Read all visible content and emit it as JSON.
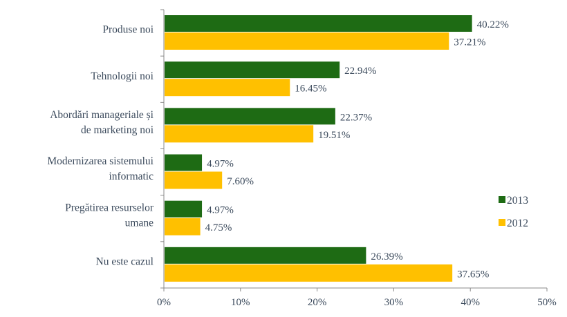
{
  "chart_data": {
    "type": "bar",
    "orientation": "horizontal",
    "title": "",
    "xlabel": "",
    "ylabel": "",
    "xlim": [
      0,
      50
    ],
    "x_ticks": [
      "0%",
      "10%",
      "20%",
      "30%",
      "40%",
      "50%"
    ],
    "categories": [
      [
        "Produse noi"
      ],
      [
        "Tehnologii noi"
      ],
      [
        "Abordări manageriale și",
        "de marketing noi"
      ],
      [
        "Modernizarea sistemului",
        "informatic"
      ],
      [
        "Pregătirea resurselor",
        "umane"
      ],
      [
        "Nu este cazul"
      ]
    ],
    "series": [
      {
        "name": "2013",
        "color": "#1e6b14",
        "values": [
          40.22,
          22.94,
          22.37,
          4.97,
          4.97,
          26.39
        ],
        "labels": [
          "40.22%",
          "22.94%",
          "22.37%",
          "4.97%",
          "4.97%",
          "26.39%"
        ]
      },
      {
        "name": "2012",
        "color": "#ffc000",
        "values": [
          37.21,
          16.45,
          19.51,
          7.6,
          4.75,
          37.65
        ],
        "labels": [
          "37.21%",
          "16.45%",
          "19.51%",
          "7.60%",
          "4.75%",
          "37.65%"
        ]
      }
    ],
    "legend": "right",
    "grid": false
  }
}
